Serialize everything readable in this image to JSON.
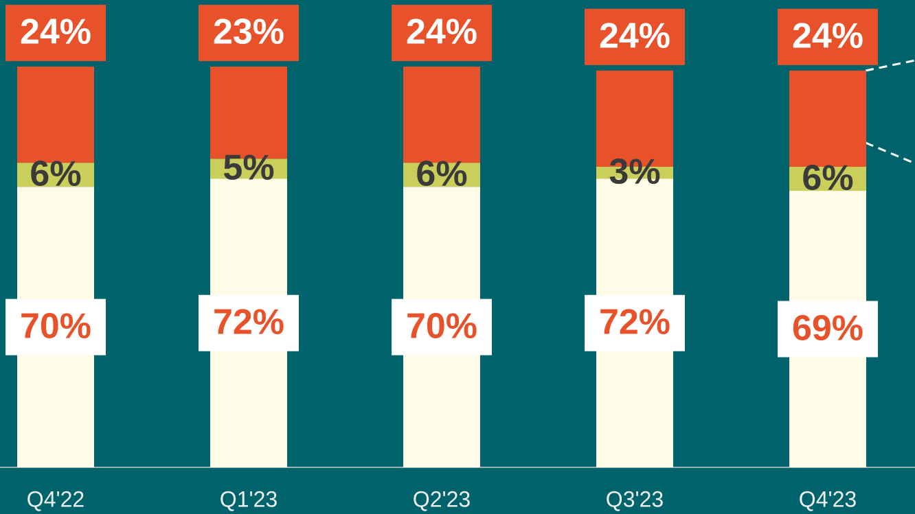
{
  "chart_data": {
    "type": "stacked_bar",
    "categories": [
      "Q4'22",
      "Q1'23",
      "Q2'23",
      "Q3'23",
      "Q4'23"
    ],
    "series": [
      {
        "color": "#fefbe6",
        "values": [
          70,
          72,
          70,
          72,
          69
        ],
        "value_labels": [
          "70%",
          "72%",
          "70%",
          "72%",
          "69%"
        ]
      },
      {
        "color": "#c9cf5a",
        "values": [
          6,
          5,
          6,
          3,
          6
        ],
        "value_labels": [
          "6%",
          "5%",
          "6%",
          "3%",
          "6%"
        ]
      },
      {
        "color": "#e8522a",
        "values": [
          24,
          23,
          24,
          24,
          24
        ],
        "value_labels": [
          "24%",
          "23%",
          "24%",
          "24%",
          "24%"
        ]
      }
    ],
    "ylim": [
      0,
      100
    ]
  }
}
